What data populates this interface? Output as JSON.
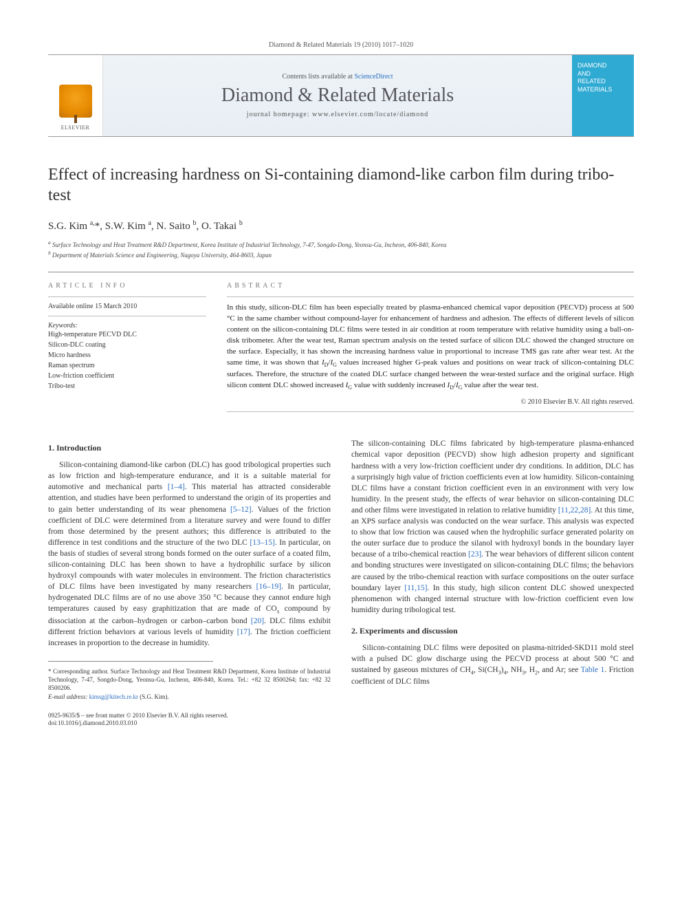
{
  "citation": "Diamond & Related Materials 19 (2010) 1017–1020",
  "header": {
    "contents_prefix": "Contents lists available at ",
    "contents_link": "ScienceDirect",
    "journal": "Diamond & Related Materials",
    "homepage_prefix": "journal homepage: ",
    "homepage": "www.elsevier.com/locate/diamond",
    "publisher": "ELSEVIER",
    "cover_line1": "DIAMOND",
    "cover_line2": "AND",
    "cover_line3": "RELATED",
    "cover_line4": "MATERIALS"
  },
  "title": "Effect of increasing hardness on Si-containing diamond-like carbon film during tribo-test",
  "authors_html": "S.G. Kim <sup>a,</sup>*, S.W. Kim <sup>a</sup>, N. Saito <sup>b</sup>, O. Takai <sup>b</sup>",
  "affiliations": {
    "a": "Surface Technology and Heat Treatment R&D Department, Korea Institute of Industrial Technology, 7-47, Songdo-Dong, Yeonsu-Gu, Incheon, 406-840, Korea",
    "b": "Department of Materials Science and Engineering, Nagoya University, 464-8603, Japan"
  },
  "info": {
    "label": "ARTICLE INFO",
    "history": "Available online 15 March 2010",
    "kw_label": "Keywords:",
    "keywords": [
      "High-temperature PECVD DLC",
      "Silicon-DLC coating",
      "Micro hardness",
      "Raman spectrum",
      "Low-friction coefficient",
      "Tribo-test"
    ]
  },
  "abstract": {
    "label": "ABSTRACT",
    "text": "In this study, silicon-DLC film has been especially treated by plasma-enhanced chemical vapor deposition (PECVD) process at 500 °C in the same chamber without compound-layer for enhancement of hardness and adhesion. The effects of different levels of silicon content on the silicon-containing DLC films were tested in air condition at room temperature with relative humidity using a ball-on-disk tribometer. After the wear test, Raman spectrum analysis on the tested surface of silicon DLC showed the changed structure on the surface. Especially, it has shown the increasing hardness value in proportional to increase TMS gas rate after wear test. At the same time, it was shown that ID/IG values increased higher G-peak values and positions on wear track of silicon-containing DLC surfaces. Therefore, the structure of the coated DLC surface changed between the wear-tested surface and the original surface. High silicon content DLC showed increased IG value with suddenly increased ID/IG value after the wear test.",
    "copyright": "© 2010 Elsevier B.V. All rights reserved."
  },
  "body": {
    "sec1_head": "1. Introduction",
    "sec1_p1": "Silicon-containing diamond-like carbon (DLC) has good tribological properties such as low friction and high-temperature endurance, and it is a suitable material for automotive and mechanical parts [1–4]. This material has attracted considerable attention, and studies have been performed to understand the origin of its properties and to gain better understanding of its wear phenomena [5–12]. Values of the friction coefficient of DLC were determined from a literature survey and were found to differ from those determined by the present authors; this difference is attributed to the difference in test conditions and the structure of the two DLC [13–15]. In particular, on the basis of studies of several strong bonds formed on the outer surface of a coated film, silicon-containing DLC has been shown to have a hydrophilic surface by silicon hydroxyl compounds with water molecules in environment. The friction characteristics of DLC films have been investigated by many researchers [16–19]. In particular, hydrogenated DLC films are of no use above 350 °C because they cannot endure high temperatures caused by easy graphitization that are made of COx compound by dissociation at the carbon–hydrogen or carbon–carbon bond [20]. DLC films exhibit different friction behaviors at various levels of humidity [17]. The friction coefficient increases in proportion to the decrease in humidity.",
    "col2_p1": "The silicon-containing DLC films fabricated by high-temperature plasma-enhanced chemical vapor deposition (PECVD) show high adhesion property and significant hardness with a very low-friction coefficient under dry conditions. In addition, DLC has a surprisingly high value of friction coefficients even at low humidity. Silicon-containing DLC films have a constant friction coefficient even in an environment with very low humidity. In the present study, the effects of wear behavior on silicon-containing DLC and other films were investigated in relation to relative humidity [11,22,28]. At this time, an XPS surface analysis was conducted on the wear surface. This analysis was expected to show that low friction was caused when the hydrophilic surface generated polarity on the outer surface due to produce the silanol with hydroxyl bonds in the boundary layer because of a tribo-chemical reaction [23]. The wear behaviors of different silicon content and bonding structures were investigated on silicon-containing DLC films; the behaviors are caused by the tribo-chemical reaction with surface compositions on the outer surface boundary layer [11,15]. In this study, high silicon content DLC showed unexpected phenomenon with changed internal structure with low-friction coefficient even low humidity during tribological test.",
    "sec2_head": "2. Experiments and discussion",
    "sec2_p1": "Silicon-containing DLC films were deposited on plasma-nitrided-SKD11 mold steel with a pulsed DC glow discharge using the PECVD process at about 500 °C and sustained by gaseous mixtures of CH4, Si(CH3)4, NH3, H2, and Ar; see Table 1. Friction coefficient of DLC films"
  },
  "footnote": {
    "corr": "* Corresponding author. Surface Technology and Heat Treatment R&D Department, Korea Institute of Industrial Technology, 7-47, Songdo-Dong, Yeonsu-Gu, Incheon, 406-840, Korea. Tel.: +82 32 8500264; fax: +82 32 8500206.",
    "email_label": "E-mail address:",
    "email": "kimsg@kitech.re.kr",
    "email_who": "(S.G. Kim)."
  },
  "bottom": {
    "line1": "0925-9635/$ – see front matter © 2010 Elsevier B.V. All rights reserved.",
    "line2": "doi:10.1016/j.diamond.2010.03.010"
  },
  "colors": {
    "link": "#2a6cbf",
    "band_bg_top": "#eef3f7",
    "band_bg_bot": "#e8eef4",
    "cover_bg": "#2faad3",
    "text": "#333333"
  }
}
